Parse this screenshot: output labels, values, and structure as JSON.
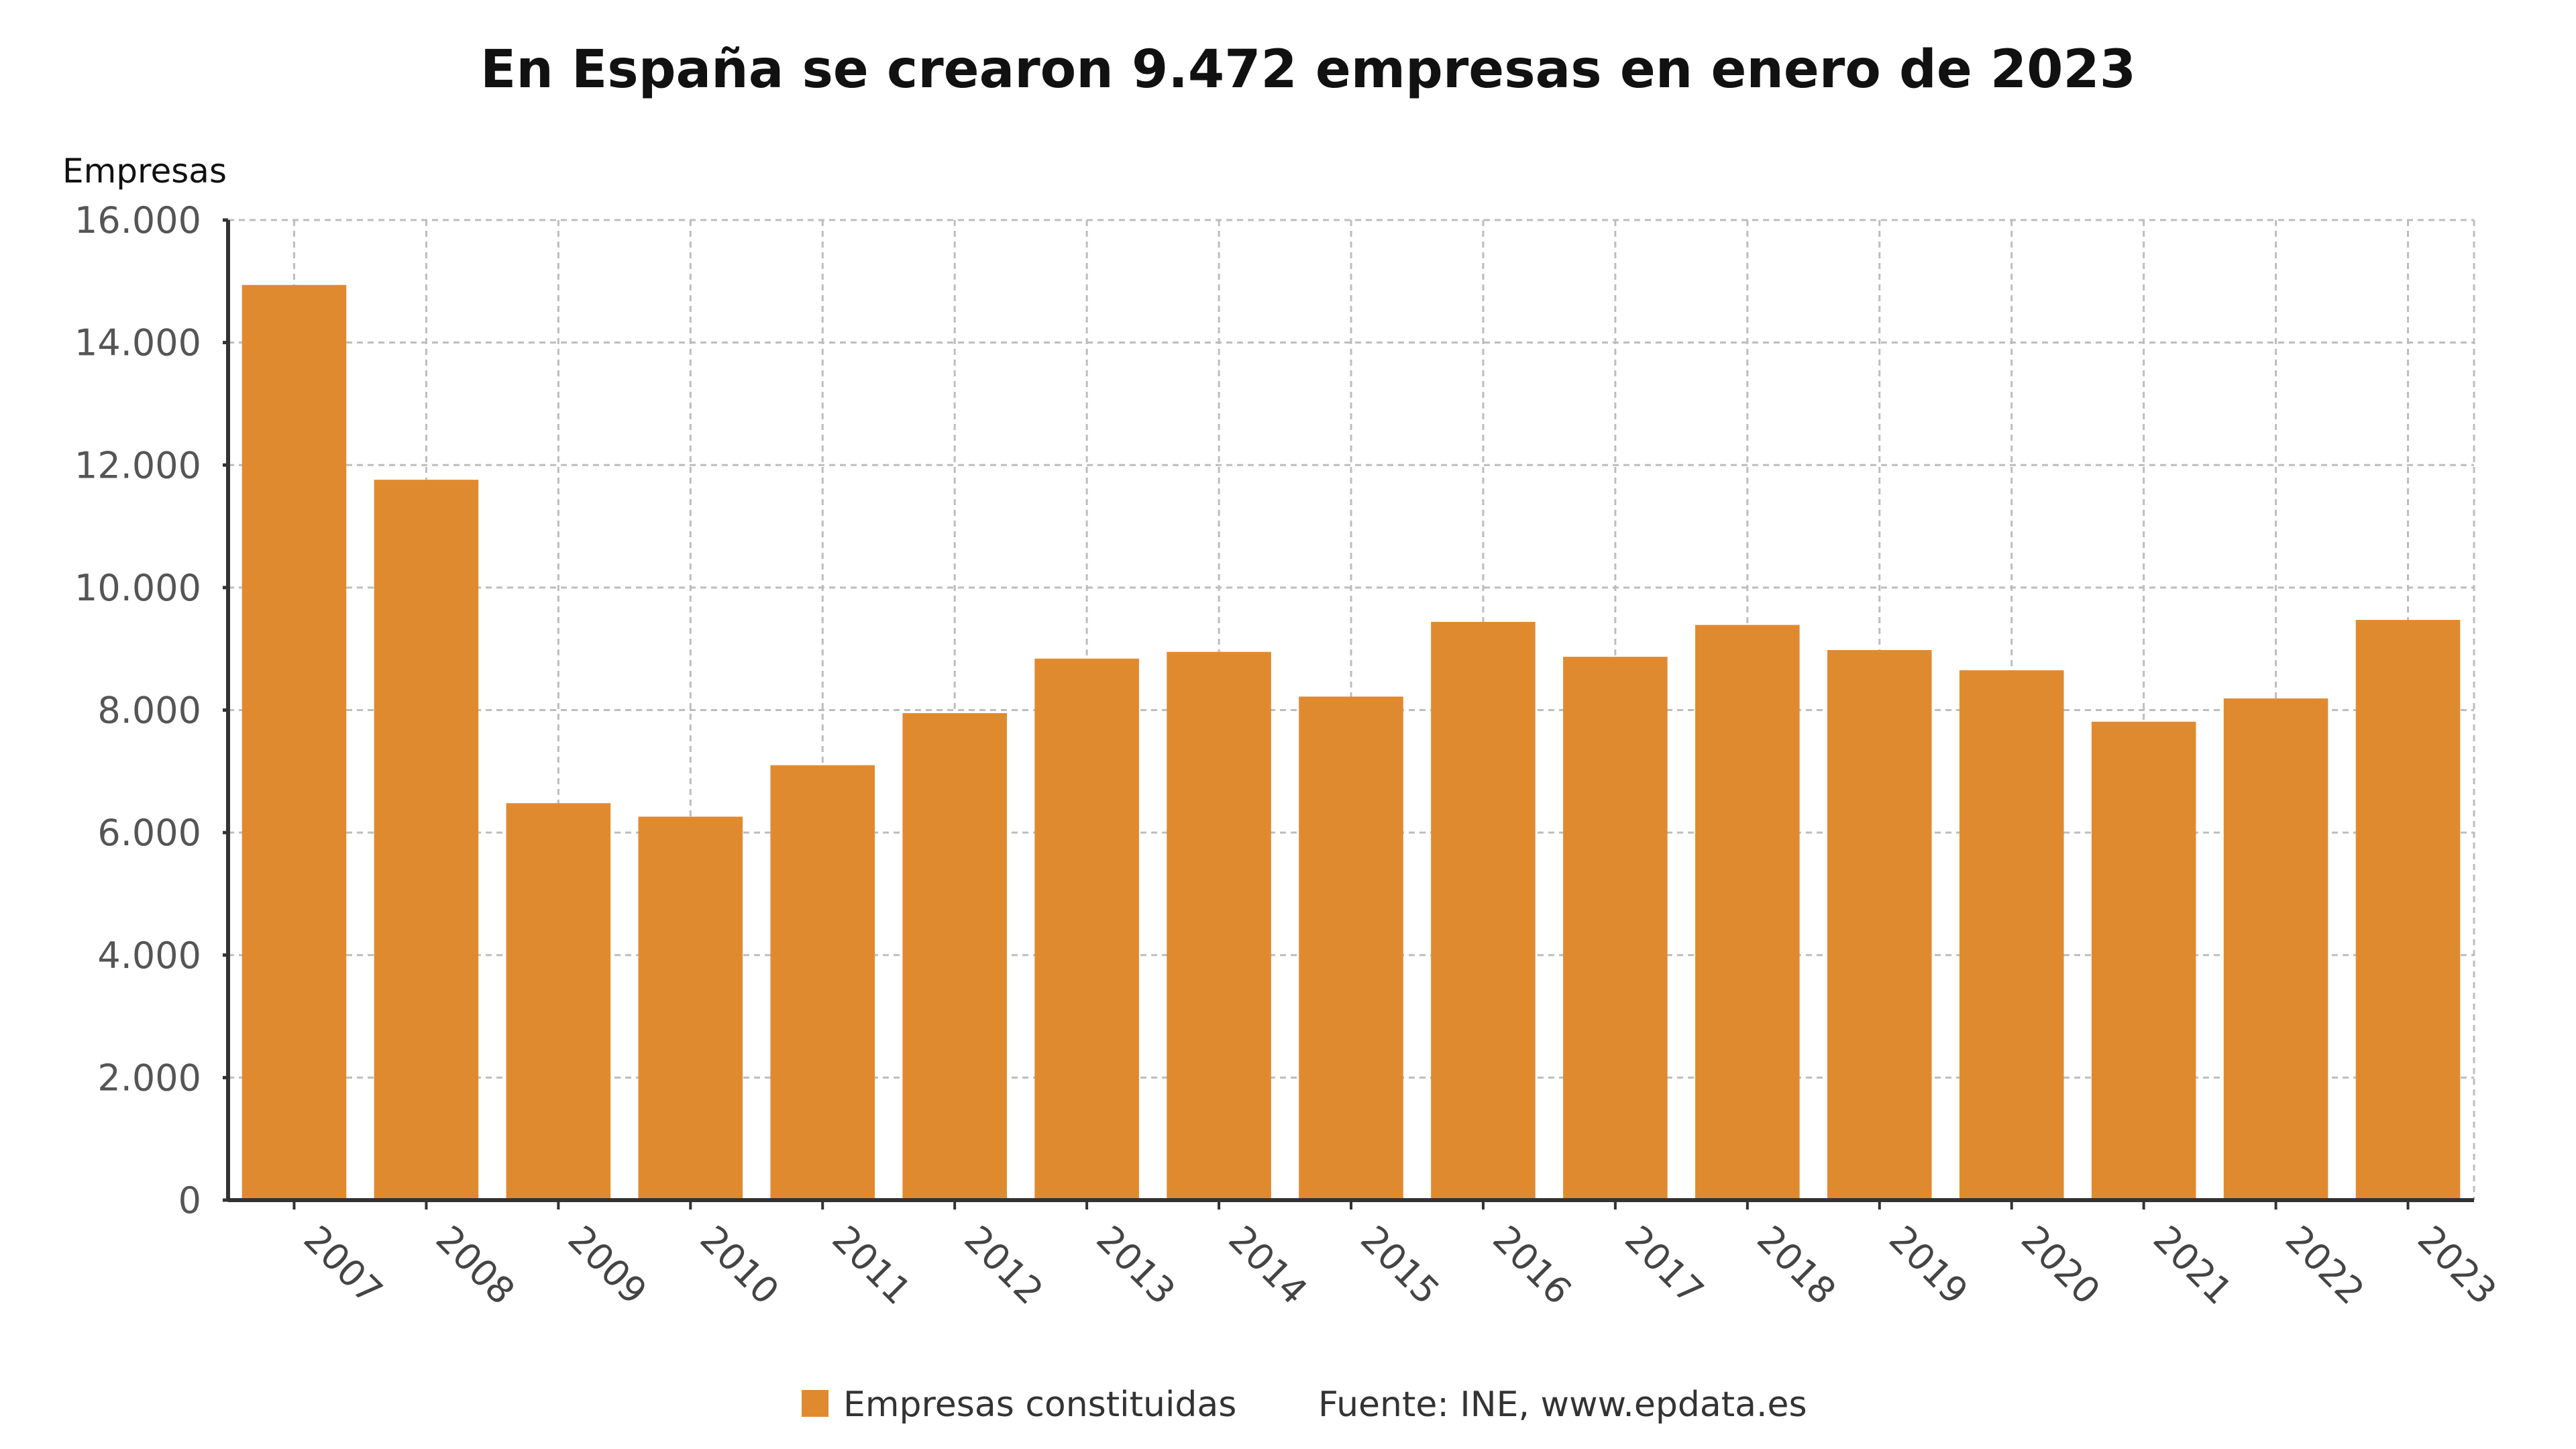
{
  "chart_data": {
    "type": "bar",
    "title": "En España se crearon 9.472 empresas en enero de 2023",
    "ylabel": "Empresas",
    "xlabel": "",
    "ylim": [
      0,
      16000
    ],
    "yticks": [
      0,
      2000,
      4000,
      6000,
      8000,
      10000,
      12000,
      14000,
      16000
    ],
    "ytick_labels": [
      "0",
      "2.000",
      "4.000",
      "6.000",
      "8.000",
      "10.000",
      "12.000",
      "14.000",
      "16.000"
    ],
    "categories": [
      "2007",
      "2008",
      "2009",
      "2010",
      "2011",
      "2012",
      "2013",
      "2014",
      "2015",
      "2016",
      "2017",
      "2018",
      "2019",
      "2020",
      "2021",
      "2022",
      "2023"
    ],
    "series": [
      {
        "name": "Empresas constituidas",
        "color": "#e08a30",
        "values": [
          14940,
          11760,
          6480,
          6260,
          7100,
          7950,
          8840,
          8950,
          8220,
          9440,
          8870,
          9390,
          8980,
          8650,
          7810,
          8190,
          9472
        ]
      }
    ],
    "grid": true,
    "legend_position": "bottom-center",
    "source": "Fuente: INE, www.epdata.es"
  }
}
